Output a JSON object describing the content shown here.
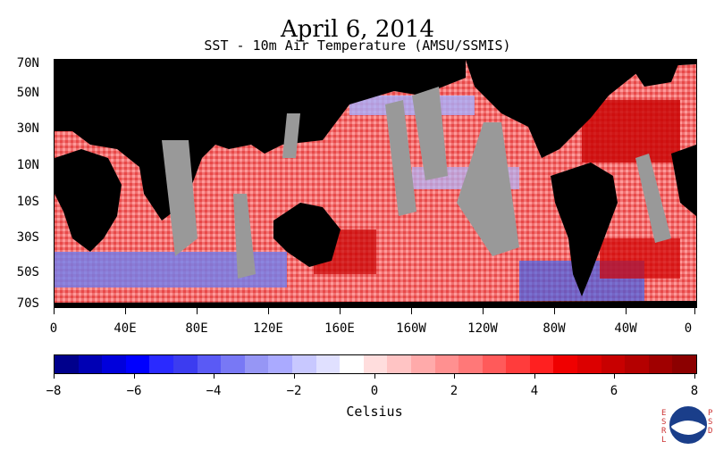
{
  "title": "April 6, 2014",
  "subtitle": "SST - 10m Air Temperature (AMSU/SSMIS)",
  "latitude_labels": [
    "70N",
    "50N",
    "30N",
    "10N",
    "10S",
    "30S",
    "50S",
    "70S"
  ],
  "longitude_labels": [
    "0",
    "40E",
    "80E",
    "120E",
    "160E",
    "160W",
    "120W",
    "80W",
    "40W",
    "0"
  ],
  "colorbar": {
    "ticks": [
      "−8",
      "−6",
      "−4",
      "−2",
      "0",
      "2",
      "4",
      "6",
      "8"
    ],
    "unit": "Celsius",
    "min": -8,
    "max": 8,
    "colors": [
      "#00008c",
      "#0000b4",
      "#0000dc",
      "#0000ff",
      "#2a2aff",
      "#3c3cf0",
      "#5a5af5",
      "#7878f5",
      "#9696f5",
      "#aaaaff",
      "#c8c8ff",
      "#e0e0ff",
      "#ffffff",
      "#ffdddd",
      "#ffc4c4",
      "#ffaaaa",
      "#ff9090",
      "#ff7878",
      "#ff5a5a",
      "#ff3c3c",
      "#ff2020",
      "#f00000",
      "#dc0000",
      "#c80000",
      "#b40000",
      "#a00000",
      "#8c0000"
    ]
  },
  "map_colors": {
    "land": "#000000",
    "missing": "#999999",
    "ocean_warm": "#e83c3c",
    "ocean_cool": "#3050e0"
  },
  "logo": {
    "text": "NOAA",
    "side_left": "ESRL",
    "side_right": "PSD"
  }
}
